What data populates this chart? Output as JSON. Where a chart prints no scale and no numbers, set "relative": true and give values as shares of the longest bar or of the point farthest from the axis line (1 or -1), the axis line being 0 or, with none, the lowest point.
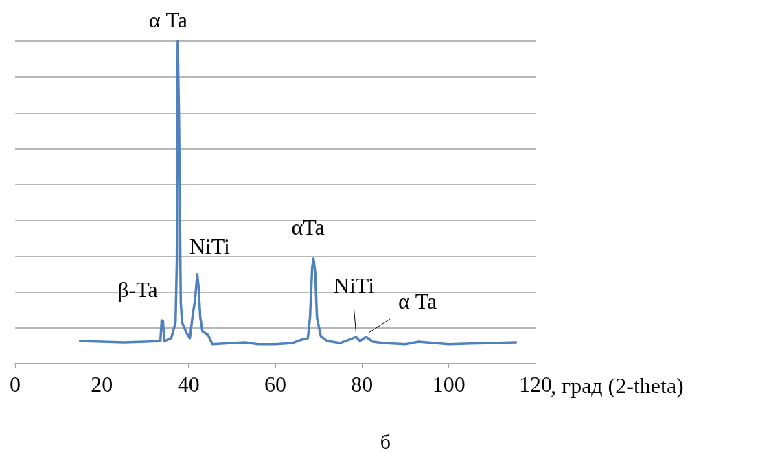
{
  "chart_data": {
    "type": "line",
    "relative": true,
    "xlabel": ", град (2-theta)",
    "xlim": [
      0,
      120
    ],
    "xticks": [
      0,
      20,
      40,
      60,
      80,
      100,
      120
    ],
    "grid": "y",
    "marker": "none",
    "line_style": "solid",
    "x": [
      15,
      20,
      25,
      30,
      33.5,
      33.8,
      34.1,
      34.4,
      36,
      37,
      37.3,
      37.5,
      37.8,
      38.2,
      38.5,
      39.5,
      40.3,
      41,
      41.5,
      42,
      42.3,
      42.7,
      43.2,
      44.5,
      45.5,
      50,
      53,
      56,
      60,
      64,
      66,
      67.5,
      68,
      68.5,
      68.8,
      69.2,
      69.6,
      70.5,
      72,
      75,
      77,
      78.6,
      79.5,
      80.9,
      82.5,
      85,
      90,
      93,
      100,
      105,
      110,
      115.5
    ],
    "series": [
      {
        "color": "#4f81bd",
        "values": [
          0.07,
          0.068,
          0.066,
          0.068,
          0.07,
          0.134,
          0.132,
          0.07,
          0.079,
          0.128,
          0.32,
          1.0,
          0.76,
          0.19,
          0.128,
          0.096,
          0.079,
          0.155,
          0.198,
          0.277,
          0.24,
          0.143,
          0.1,
          0.089,
          0.06,
          0.064,
          0.066,
          0.06,
          0.06,
          0.064,
          0.074,
          0.079,
          0.143,
          0.298,
          0.326,
          0.283,
          0.143,
          0.085,
          0.07,
          0.064,
          0.074,
          0.083,
          0.07,
          0.083,
          0.068,
          0.064,
          0.06,
          0.068,
          0.06,
          0.062,
          0.064,
          0.066
        ]
      }
    ],
    "annotations": [
      {
        "text": "α Ta",
        "x": 37.5,
        "y": 1.0
      },
      {
        "text": "β-Ta",
        "x": 33.8,
        "y": 0.134
      },
      {
        "text": "NiTi",
        "x": 42,
        "y": 0.277
      },
      {
        "text": "αTa",
        "x": 68.8,
        "y": 0.326
      },
      {
        "text": "NiTi",
        "x": 78.6,
        "y": 0.083
      },
      {
        "text": "α Ta",
        "x": 80.9,
        "y": 0.083
      },
      "б"
    ]
  }
}
